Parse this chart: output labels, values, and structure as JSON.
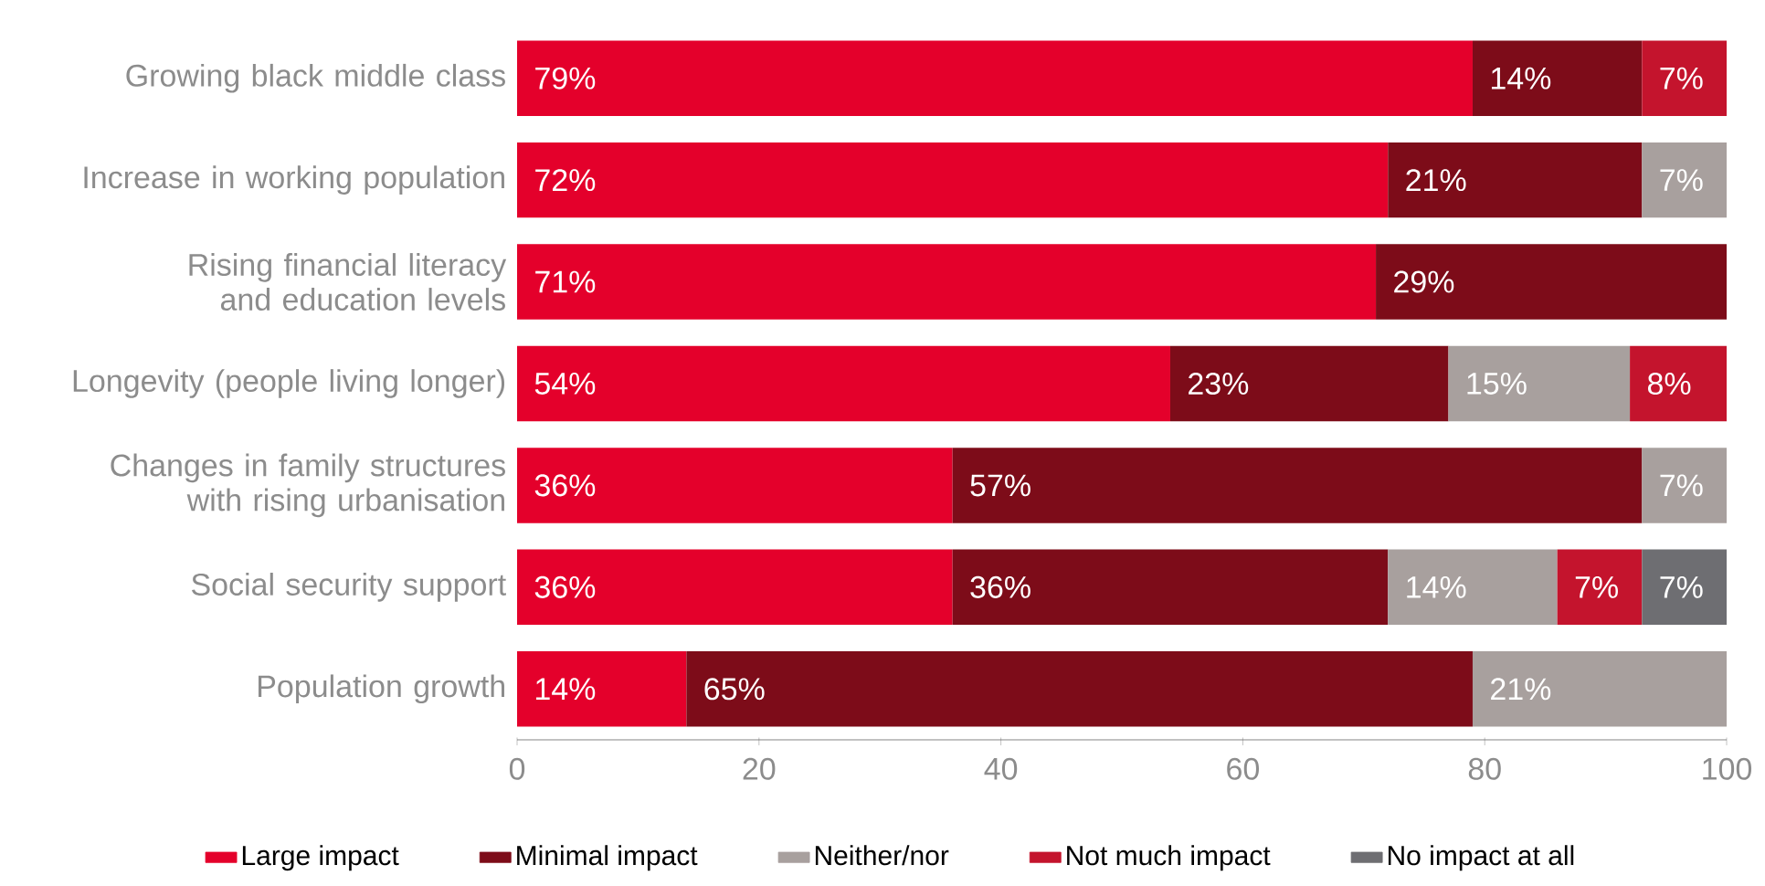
{
  "chart_data": {
    "type": "bar",
    "orientation": "horizontal",
    "stacked": true,
    "legend": "bottom",
    "categories": [
      "Growing black middle class",
      "Increase in working population",
      "Rising financial literacy and education levels",
      "Longevity (people living longer)",
      "Changes in family structures with rising urbanisation",
      "Social security support",
      "Population growth"
    ],
    "series": [
      {
        "name": "Large impact",
        "color": "#e4002b",
        "values": [
          79,
          72,
          71,
          54,
          36,
          36,
          14
        ],
        "value_labels": [
          "79%",
          "72%",
          "71%",
          "54%",
          "36%",
          "36%",
          "14%"
        ]
      },
      {
        "name": "Minimal impact",
        "color": "#7d0c19",
        "values": [
          14,
          21,
          29,
          23,
          57,
          36,
          65
        ],
        "value_labels": [
          "14%",
          "21%",
          "29%",
          "23%",
          "57%",
          "36%",
          "65%"
        ]
      },
      {
        "name": "Neither/nor",
        "color": "#a8a09e",
        "values": [
          null,
          7,
          null,
          15,
          7,
          14,
          21
        ],
        "value_labels": [
          null,
          "7%",
          null,
          "15%",
          "7%",
          "14%",
          "21%"
        ]
      },
      {
        "name": "Not much impact",
        "color": "#c4142d",
        "values": [
          7,
          null,
          null,
          8,
          null,
          7,
          null
        ],
        "value_labels": [
          "7%",
          null,
          null,
          "8%",
          null,
          "7%",
          null
        ]
      },
      {
        "name": "No impact at all",
        "color": "#6e6e72",
        "values": [
          null,
          null,
          null,
          null,
          null,
          7,
          null
        ],
        "value_labels": [
          null,
          null,
          null,
          null,
          null,
          "7%",
          null
        ]
      }
    ],
    "xlim": [
      0,
      100
    ],
    "xticks": [
      0,
      20,
      40,
      60,
      80,
      100
    ]
  }
}
